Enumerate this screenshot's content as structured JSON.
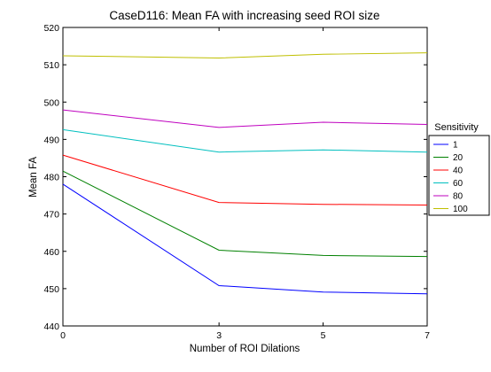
{
  "chart_data": {
    "type": "line",
    "title": "CaseD116: Mean FA with increasing seed ROI size",
    "xlabel": "Number of ROI Dilations",
    "ylabel": "Mean FA",
    "x": [
      0,
      3,
      5,
      7
    ],
    "xticks": [
      "0",
      "3",
      "5",
      "7"
    ],
    "xlim": [
      0,
      7
    ],
    "ylim": [
      440,
      520
    ],
    "yticks": [
      "440",
      "450",
      "460",
      "470",
      "480",
      "490",
      "500",
      "510",
      "520"
    ],
    "grid": false,
    "legend": {
      "title": "Sensitivity",
      "placement": "outside-right"
    },
    "series": [
      {
        "name": "1",
        "color": "#0000ff",
        "values": [
          478.0,
          450.8,
          449.1,
          448.6
        ]
      },
      {
        "name": "20",
        "color": "#008000",
        "values": [
          481.5,
          460.3,
          458.9,
          458.6
        ]
      },
      {
        "name": "40",
        "color": "#ff0000",
        "values": [
          485.8,
          473.1,
          472.6,
          472.4
        ]
      },
      {
        "name": "60",
        "color": "#00bfbf",
        "values": [
          492.6,
          486.6,
          487.2,
          486.6
        ]
      },
      {
        "name": "80",
        "color": "#bf00bf",
        "values": [
          497.9,
          493.2,
          494.6,
          494.0
        ]
      },
      {
        "name": "100",
        "color": "#bfbf00",
        "values": [
          512.4,
          511.8,
          512.8,
          513.2
        ]
      }
    ]
  }
}
